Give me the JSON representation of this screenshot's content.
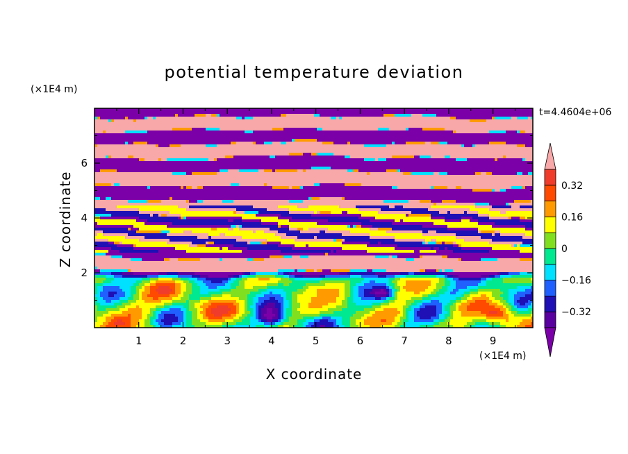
{
  "chart_data": {
    "type": "heatmap",
    "title": "potential temperature deviation",
    "xlabel": "X coordinate",
    "ylabel": "Z coordinate",
    "x_unit": "(×1E4 m)",
    "y_unit": "(×1E4 m)",
    "time_label": "t=4.4604e+06",
    "xlim": [
      0,
      9.9
    ],
    "ylim": [
      0,
      8
    ],
    "x_ticks": [
      "1",
      "2",
      "3",
      "4",
      "5",
      "6",
      "7",
      "8",
      "9"
    ],
    "y_ticks": [
      "2",
      "4",
      "6"
    ],
    "colorbar": {
      "levels": [
        -0.4,
        -0.32,
        -0.24,
        -0.16,
        -0.08,
        0,
        0.08,
        0.16,
        0.24,
        0.32,
        0.4
      ],
      "tick_labels": [
        "0.32",
        "0.16",
        "0",
        "−0.16",
        "−0.32"
      ],
      "tick_values": [
        0.32,
        0.16,
        0,
        -0.16,
        -0.32
      ],
      "colors": [
        "#7b00a8",
        "#5a00a0",
        "#1e10b4",
        "#1f60ff",
        "#00e0ff",
        "#00e890",
        "#80e020",
        "#ffff00",
        "#ff9a00",
        "#ff4a00",
        "#f03c2a",
        "#f8a8a8"
      ],
      "extend": "both"
    },
    "layers": [
      {
        "z_range": [
          6.6,
          8.0
        ],
        "values": [
          0.45,
          -0.45,
          0.45,
          -0.45,
          0.45
        ],
        "dominant": "mixed"
      },
      {
        "z_range": [
          5.0,
          6.6
        ],
        "values": [
          0.45,
          -0.45,
          0.45,
          -0.45
        ],
        "dominant": "mixed"
      },
      {
        "z_range": [
          3.5,
          5.0
        ],
        "values": [
          -0.2,
          0.1,
          0.3,
          0.45,
          -0.3
        ],
        "dominant": "mixed"
      },
      {
        "z_range": [
          2.0,
          3.5
        ],
        "values": [
          0.45,
          -0.35,
          0.45,
          -0.45
        ],
        "dominant": "mixed"
      },
      {
        "z_range": [
          0.0,
          2.0
        ],
        "values": [
          0.0,
          -0.08,
          0.08,
          0.16,
          -0.32
        ],
        "dominant": "mixed"
      }
    ]
  }
}
